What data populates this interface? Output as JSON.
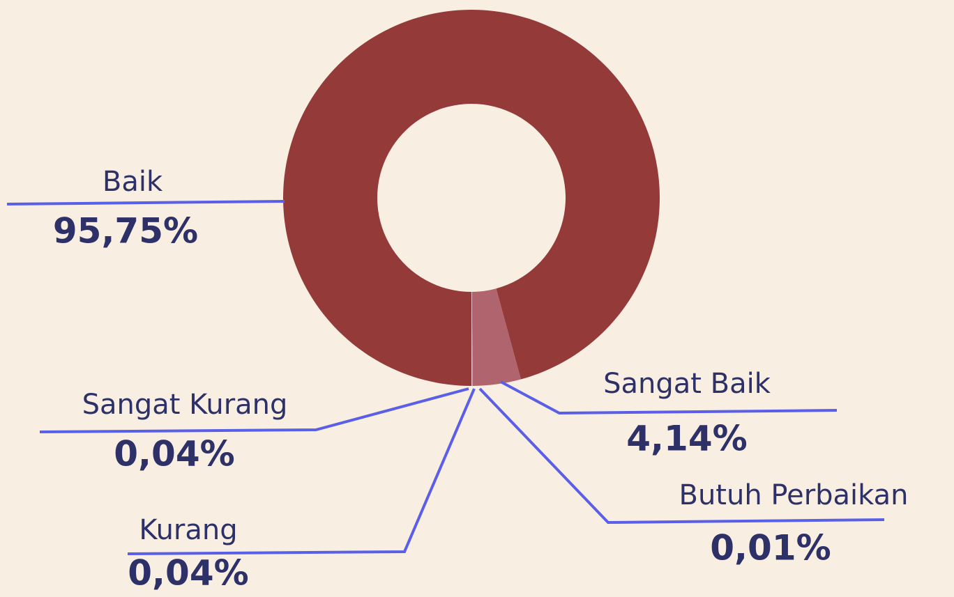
{
  "chart_data": {
    "type": "pie",
    "categories": [
      "Baik",
      "Sangat Baik",
      "Sangat Kurang",
      "Kurang",
      "Butuh Perbaikan"
    ],
    "values": [
      95.75,
      4.14,
      0.04,
      0.04,
      0.01
    ],
    "value_labels": [
      "95,75%",
      "4,14%",
      "0,04%",
      "0,04%",
      "0,01%"
    ],
    "colors": [
      "#943a39",
      "#b0646d",
      "#e8b8cc",
      "#dca6bb",
      "#f2cfdc"
    ],
    "donut": true
  }
}
